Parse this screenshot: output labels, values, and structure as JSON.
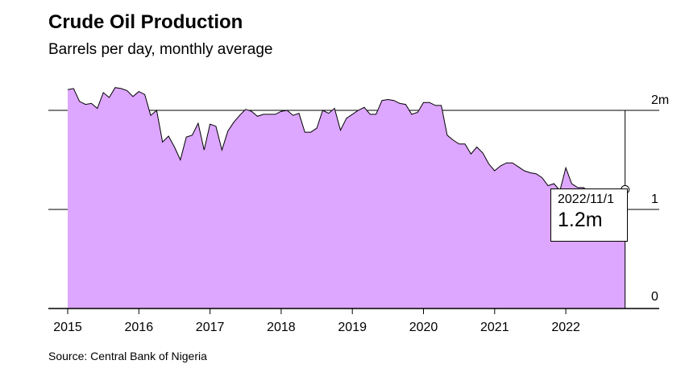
{
  "chart_data": {
    "type": "area",
    "title": "Crude Oil Production",
    "subtitle": "Barrels per day, monthly average",
    "source": "Source: Central Bank of Nigeria",
    "xlabel": "",
    "ylabel": "",
    "x_tick_labels": [
      "2015",
      "2016",
      "2017",
      "2018",
      "2019",
      "2020",
      "2021",
      "2022"
    ],
    "y_ticks": [
      {
        "value": 0,
        "label": "0"
      },
      {
        "value": 1,
        "label": "1"
      },
      {
        "value": 2,
        "label": "2m"
      }
    ],
    "ylim": [
      0,
      2.2
    ],
    "xlim": [
      2015.0,
      2022.95
    ],
    "grid": "horizontal",
    "colors": {
      "fill": "#dda6ff",
      "line": "#000000"
    },
    "tooltip": {
      "date": "2022/11/1",
      "value": "1.2m"
    },
    "series": [
      {
        "x": [
          2015.0,
          2015.083,
          2015.167,
          2015.25,
          2015.333,
          2015.417,
          2015.5,
          2015.583,
          2015.667,
          2015.75,
          2015.833,
          2015.917,
          2016.0,
          2016.083,
          2016.167,
          2016.25,
          2016.333,
          2016.417,
          2016.5,
          2016.583,
          2016.667,
          2016.75,
          2016.833,
          2016.917,
          2017.0,
          2017.083,
          2017.167,
          2017.25,
          2017.333,
          2017.417,
          2017.5,
          2017.583,
          2017.667,
          2017.75,
          2017.833,
          2017.917,
          2018.0,
          2018.083,
          2018.167,
          2018.25,
          2018.333,
          2018.417,
          2018.5,
          2018.583,
          2018.667,
          2018.75,
          2018.833,
          2018.917,
          2019.0,
          2019.083,
          2019.167,
          2019.25,
          2019.333,
          2019.417,
          2019.5,
          2019.583,
          2019.667,
          2019.75,
          2019.833,
          2019.917,
          2020.0,
          2020.083,
          2020.167,
          2020.25,
          2020.333,
          2020.417,
          2020.5,
          2020.583,
          2020.667,
          2020.75,
          2020.833,
          2020.917,
          2021.0,
          2021.083,
          2021.167,
          2021.25,
          2021.333,
          2021.417,
          2021.5,
          2021.583,
          2021.667,
          2021.75,
          2021.833,
          2021.917,
          2022.0,
          2022.083,
          2022.167,
          2022.25,
          2022.333,
          2022.417,
          2022.5,
          2022.583,
          2022.667,
          2022.75,
          2022.833
        ],
        "values": [
          2.21,
          2.22,
          2.09,
          2.06,
          2.07,
          2.02,
          2.18,
          2.13,
          2.23,
          2.22,
          2.2,
          2.14,
          2.19,
          2.16,
          1.95,
          2.0,
          1.68,
          1.74,
          1.63,
          1.5,
          1.73,
          1.75,
          1.87,
          1.6,
          1.86,
          1.84,
          1.6,
          1.79,
          1.88,
          1.95,
          2.01,
          1.99,
          1.94,
          1.96,
          1.96,
          1.96,
          1.99,
          2.0,
          1.95,
          1.97,
          1.78,
          1.78,
          1.82,
          2.0,
          1.97,
          2.02,
          1.8,
          1.92,
          1.96,
          2.0,
          2.03,
          1.96,
          1.96,
          2.1,
          2.11,
          2.1,
          2.07,
          2.06,
          1.96,
          1.98,
          2.08,
          2.08,
          2.05,
          2.05,
          1.75,
          1.7,
          1.66,
          1.66,
          1.56,
          1.63,
          1.57,
          1.46,
          1.39,
          1.44,
          1.47,
          1.47,
          1.43,
          1.39,
          1.37,
          1.36,
          1.32,
          1.24,
          1.26,
          1.19,
          1.42,
          1.26,
          1.22,
          1.22,
          1.17,
          1.19,
          1.11,
          1.17,
          1.06,
          1.14,
          1.2
        ]
      }
    ]
  }
}
